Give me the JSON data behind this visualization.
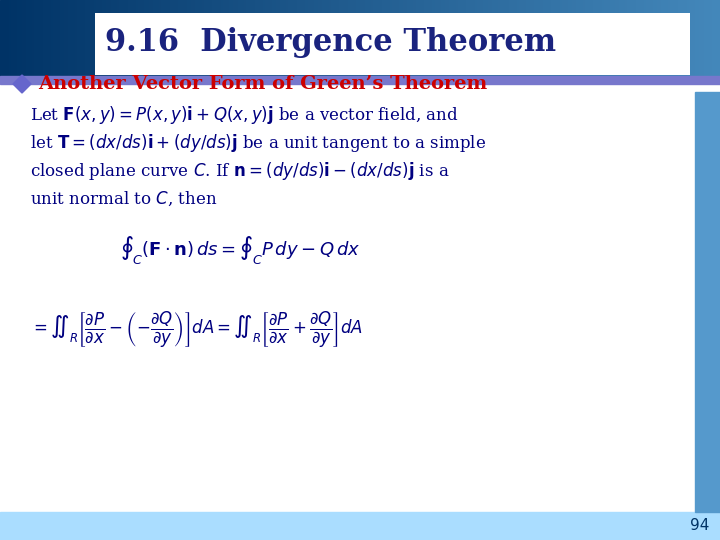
{
  "title": "9.16  Divergence Theorem",
  "title_color": "#1a237e",
  "title_bg": "#f0f0ff",
  "header_bg_left": "#003366",
  "header_bg_right": "#4488bb",
  "header_bar_color": "#7777cc",
  "footer_bg": "#aaddff",
  "footer_number": "94",
  "body_bg": "#ffffff",
  "bullet_color": "#6666cc",
  "bullet_text_color": "#cc0000",
  "bullet_heading": "Another Vector Form of Green’s Theorem",
  "body_text_color": "#000080",
  "body_lines": [
    "Let $\\mathbf{F}(x, y) = P(x, y)\\mathbf{i} + Q(x, y)\\mathbf{j}$ be a vector field, and",
    "let $\\mathbf{T} = (dx/ds)\\mathbf{i} + (dy/ds)\\mathbf{j}$ be a unit tangent to a simple",
    "closed plane curve $C$. If $\\mathbf{n} = (dy/ds)\\mathbf{i} - (dx/ds)\\mathbf{j}$ is a",
    "unit normal to $C$, then"
  ],
  "eq1": "$\\oint_C (\\mathbf{F} \\cdot \\mathbf{n})\\,ds = \\oint_C P\\,dy - Q\\,dx$",
  "eq2": "$= \\iint_R \\left[\\dfrac{\\partial P}{\\partial x} - \\left(-\\dfrac{\\partial Q}{\\partial y}\\right)\\right] dA = \\iint_R \\left[\\dfrac{\\partial P}{\\partial x} + \\dfrac{\\partial Q}{\\partial y}\\right] dA$"
}
